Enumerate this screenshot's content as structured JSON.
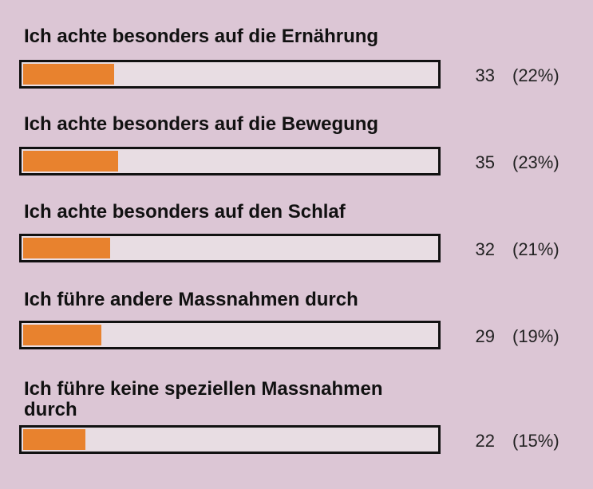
{
  "chart_data": {
    "type": "bar",
    "orientation": "horizontal",
    "categories": [
      "Ich achte besonders auf die Ernährung",
      "Ich achte besonders auf die Bewegung",
      "Ich achte besonders auf den Schlaf",
      "Ich führe andere Massnahmen durch",
      "Ich führe keine speziellen Massnahmen durch"
    ],
    "values": [
      33,
      35,
      32,
      29,
      22
    ],
    "percent_labels": [
      "(22%)",
      "(23%)",
      "(21%)",
      "(19%)",
      "(15%)"
    ],
    "percents": [
      22,
      23,
      21,
      19,
      15
    ],
    "xlim": [
      0,
      100
    ],
    "title": "",
    "xlabel": "",
    "ylabel": "",
    "grid": false,
    "legend": "none"
  },
  "colors": {
    "background": "#dcc6d5",
    "bar_fill": "#e8822e",
    "bar_track": "#e8dde3",
    "bar_border": "#111111"
  }
}
